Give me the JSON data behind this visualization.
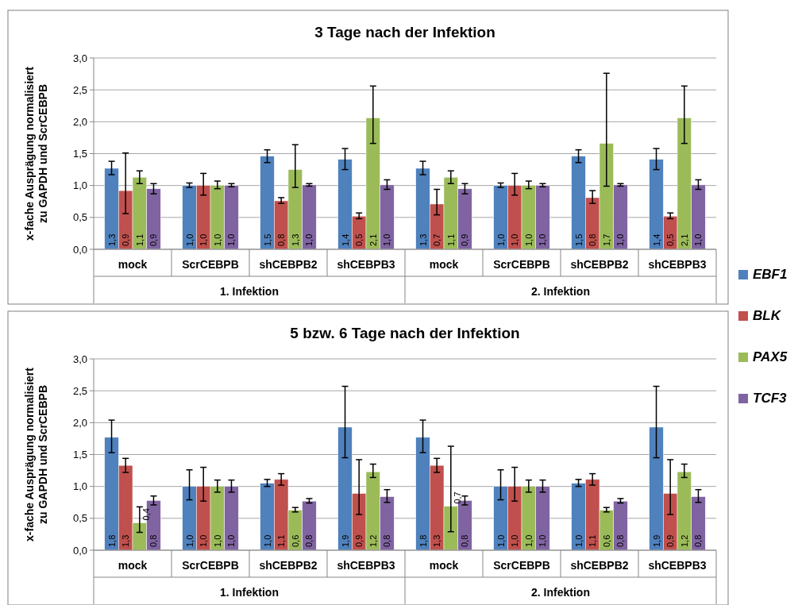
{
  "chart_data": [
    {
      "type": "bar",
      "title": "3 Tage nach der Infektion",
      "ylabel": "x-fache Ausprägung normalisiert\nzu GAPDH und ScrCEBPB",
      "categories": [
        "mock",
        "ScrCEBPB",
        "shCEBPB2",
        "shCEBPB3",
        "mock",
        "ScrCEBPB",
        "shCEBPB2",
        "shCEBPB3"
      ],
      "annotations": [
        "1. Infektion",
        "2. Infektion"
      ],
      "ylim": [
        0,
        3
      ],
      "yticks": [
        {
          "value": 0,
          "label": "0,0"
        },
        {
          "value": 0.5,
          "label": "0,5"
        },
        {
          "value": 1,
          "label": "1,0"
        },
        {
          "value": 1.5,
          "label": "1,5"
        },
        {
          "value": 2,
          "label": "2,0"
        },
        {
          "value": 2.5,
          "label": "2,5"
        },
        {
          "value": 3,
          "label": "3,0"
        }
      ],
      "grid": "y",
      "legend": "right",
      "series": [
        {
          "name": "EBF1",
          "color": "#4f81bd",
          "values": [
            1.27,
            1.0,
            1.46,
            1.41,
            1.27,
            1.0,
            1.46,
            1.41
          ],
          "errors": [
            [
              1.17,
              1.38
            ],
            [
              0.97,
              1.04
            ],
            [
              1.36,
              1.56
            ],
            [
              1.25,
              1.58
            ],
            [
              1.17,
              1.38
            ],
            [
              0.97,
              1.04
            ],
            [
              1.36,
              1.56
            ],
            [
              1.25,
              1.58
            ]
          ],
          "value_labels": [
            "1,3",
            "1,0",
            "1,5",
            "1,4",
            "1,3",
            "1,0",
            "1,5",
            "1,4"
          ]
        },
        {
          "name": "BLK",
          "color": "#c0504d",
          "values": [
            0.92,
            1.0,
            0.76,
            0.52,
            0.71,
            1.0,
            0.81,
            0.52
          ],
          "errors": [
            [
              0.56,
              1.51
            ],
            [
              0.85,
              1.19
            ],
            [
              0.72,
              0.81
            ],
            [
              0.48,
              0.57
            ],
            [
              0.54,
              0.94
            ],
            [
              0.85,
              1.19
            ],
            [
              0.72,
              0.92
            ],
            [
              0.48,
              0.57
            ]
          ],
          "value_labels": [
            "0,9",
            "1,0",
            "0,8",
            "0,5",
            "0,7",
            "1,0",
            "0,8",
            "0,5"
          ]
        },
        {
          "name": "PAX5",
          "color": "#9bbb59",
          "values": [
            1.13,
            1.0,
            1.25,
            2.06,
            1.13,
            1.0,
            1.66,
            2.06
          ],
          "errors": [
            [
              1.03,
              1.23
            ],
            [
              0.95,
              1.07
            ],
            [
              0.97,
              1.64
            ],
            [
              1.66,
              2.56
            ],
            [
              1.03,
              1.23
            ],
            [
              0.95,
              1.07
            ],
            [
              0.99,
              2.76
            ],
            [
              1.66,
              2.56
            ]
          ],
          "value_labels": [
            "1,1",
            "1,0",
            "1,3",
            "2,1",
            "1,1",
            "1,0",
            "1,7",
            "2,1"
          ]
        },
        {
          "name": "TCF3",
          "color": "#8064a2",
          "values": [
            0.95,
            1.0,
            1.01,
            1.01,
            0.95,
            1.0,
            1.01,
            1.01
          ],
          "errors": [
            [
              0.87,
              1.03
            ],
            [
              0.98,
              1.03
            ],
            [
              0.99,
              1.03
            ],
            [
              0.94,
              1.09
            ],
            [
              0.87,
              1.03
            ],
            [
              0.98,
              1.03
            ],
            [
              0.99,
              1.03
            ],
            [
              0.94,
              1.09
            ]
          ],
          "value_labels": [
            "0,9",
            "1,0",
            "1,0",
            "1,0",
            "0,9",
            "1,0",
            "1,0",
            "1,0"
          ]
        }
      ]
    },
    {
      "type": "bar",
      "title": "5 bzw. 6 Tage nach der Infektion",
      "ylabel": "x-fache Ausprägung normalisiert\nzu GAPDH und ScrCEBPB",
      "categories": [
        "mock",
        "ScrCEBPB",
        "shCEBPB2",
        "shCEBPB3",
        "mock",
        "ScrCEBPB",
        "shCEBPB2",
        "shCEBPB3"
      ],
      "annotations": [
        "1. Infektion",
        "2. Infektion"
      ],
      "ylim": [
        0,
        3
      ],
      "yticks": [
        {
          "value": 0,
          "label": "0,0"
        },
        {
          "value": 0.5,
          "label": "0,5"
        },
        {
          "value": 1,
          "label": "1,0"
        },
        {
          "value": 1.5,
          "label": "1,5"
        },
        {
          "value": 2,
          "label": "2,0"
        },
        {
          "value": 2.5,
          "label": "2,5"
        },
        {
          "value": 3,
          "label": "3,0"
        }
      ],
      "grid": "y",
      "series": [
        {
          "color": "#4f81bd",
          "values": [
            1.77,
            1.0,
            1.05,
            1.93,
            1.77,
            1.0,
            1.05,
            1.93
          ],
          "errors": [
            [
              1.53,
              2.04
            ],
            [
              0.79,
              1.26
            ],
            [
              1.0,
              1.11
            ],
            [
              1.45,
              2.57
            ],
            [
              1.53,
              2.04
            ],
            [
              0.79,
              1.26
            ],
            [
              1.0,
              1.11
            ],
            [
              1.45,
              2.57
            ]
          ],
          "value_labels": [
            "1,8",
            "1,0",
            "1,0",
            "1,9",
            "1,8",
            "1,0",
            "1,0",
            "1,9"
          ]
        },
        {
          "color": "#c0504d",
          "values": [
            1.33,
            1.0,
            1.11,
            0.89,
            1.33,
            1.0,
            1.11,
            0.89
          ],
          "errors": [
            [
              1.22,
              1.44
            ],
            [
              0.77,
              1.3
            ],
            [
              1.02,
              1.2
            ],
            [
              0.56,
              1.42
            ],
            [
              1.22,
              1.44
            ],
            [
              0.77,
              1.3
            ],
            [
              1.02,
              1.2
            ],
            [
              0.56,
              1.42
            ]
          ],
          "value_labels": [
            "1,3",
            "1,0",
            "1,1",
            "0,9",
            "1,3",
            "1,0",
            "1,1",
            "0,9"
          ]
        },
        {
          "color": "#9bbb59",
          "values": [
            0.43,
            1.0,
            0.63,
            1.23,
            0.69,
            1.0,
            0.63,
            1.23
          ],
          "errors": [
            [
              0.28,
              0.68
            ],
            [
              0.91,
              1.1
            ],
            [
              0.6,
              0.67
            ],
            [
              1.14,
              1.35
            ],
            [
              0.29,
              1.63
            ],
            [
              0.91,
              1.1
            ],
            [
              0.6,
              0.67
            ],
            [
              1.14,
              1.35
            ]
          ],
          "value_labels": [
            "0,4",
            "1,0",
            "0,6",
            "1,2",
            "0,7",
            "1,0",
            "0,6",
            "1,2"
          ]
        },
        {
          "color": "#8064a2",
          "values": [
            0.78,
            1.0,
            0.77,
            0.84,
            0.78,
            1.0,
            0.77,
            0.84
          ],
          "errors": [
            [
              0.71,
              0.85
            ],
            [
              0.91,
              1.1
            ],
            [
              0.74,
              0.81
            ],
            [
              0.75,
              0.95
            ],
            [
              0.71,
              0.85
            ],
            [
              0.91,
              1.1
            ],
            [
              0.74,
              0.81
            ],
            [
              0.75,
              0.95
            ]
          ],
          "value_labels": [
            "0,8",
            "1,0",
            "0,8",
            "0,8",
            "0,8",
            "1,0",
            "0,8",
            "0,8"
          ]
        }
      ]
    }
  ]
}
